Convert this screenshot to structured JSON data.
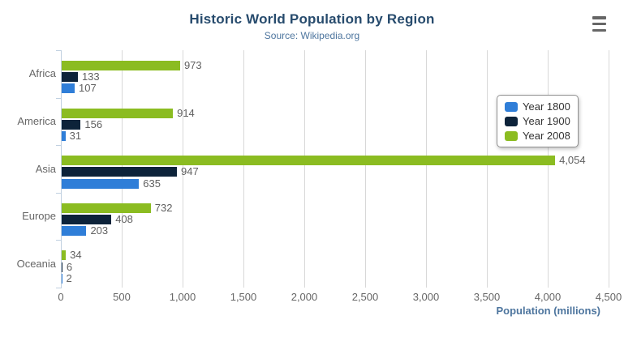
{
  "colors": {
    "series_year_1800": "#2f7ed8",
    "series_year_1900": "#0d233a",
    "series_year_2008": "#8bbc21",
    "title_text": "#274b6d",
    "subtitle_text": "#4d759e",
    "axis_title_text": "#4d759e",
    "tick_label_text": "#666666",
    "data_label_text": "#606060",
    "grid_line": "#d8d8d8",
    "axis_line": "#c0d0e0",
    "legend_border": "#909090",
    "menu_icon": "#666666"
  },
  "chart_data": {
    "type": "bar",
    "orientation": "horizontal",
    "title": "Historic World Population by Region",
    "subtitle": "Source: Wikipedia.org",
    "categories": [
      "Africa",
      "America",
      "Asia",
      "Europe",
      "Oceania"
    ],
    "series": [
      {
        "name": "Year 1800",
        "color": "#2f7ed8",
        "values": [
          107,
          31,
          635,
          203,
          2
        ],
        "labels": [
          "107",
          "31",
          "635",
          "203",
          "2"
        ]
      },
      {
        "name": "Year 1900",
        "color": "#0d233a",
        "values": [
          133,
          156,
          947,
          408,
          6
        ],
        "labels": [
          "133",
          "156",
          "947",
          "408",
          "6"
        ]
      },
      {
        "name": "Year 2008",
        "color": "#8bbc21",
        "values": [
          973,
          914,
          4054,
          732,
          34
        ],
        "labels": [
          "973",
          "914",
          "4,054",
          "732",
          "34"
        ]
      }
    ],
    "row_order_top_to_bottom": [
      "Year 2008",
      "Year 1900",
      "Year 1800"
    ],
    "xlabel": "Population (millions)",
    "x_ticks": [
      "0",
      "500",
      "1,000",
      "1,500",
      "2,000",
      "2,500",
      "3,000",
      "3,500",
      "4,000",
      "4,500"
    ],
    "xlim": [
      0,
      4500
    ],
    "grid": true,
    "legend_position": "right-inside",
    "data_labels_visible": true
  }
}
